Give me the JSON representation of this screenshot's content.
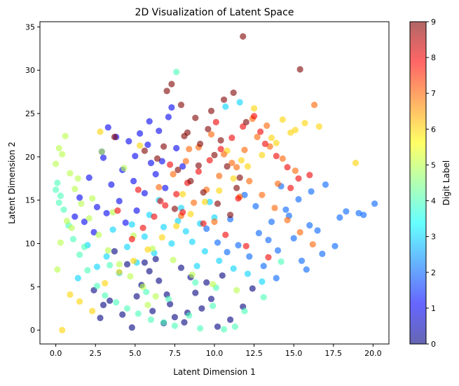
{
  "chart_data": {
    "type": "scatter",
    "title": "2D Visualization of Latent Space",
    "xlabel": "Latent Dimension 1",
    "ylabel": "Latent Dimension 2",
    "xlim": [
      -1.0,
      21.0
    ],
    "ylim": [
      -1.6,
      35.6
    ],
    "x_ticks": [
      0.0,
      2.5,
      5.0,
      7.5,
      10.0,
      12.5,
      15.0,
      17.5,
      20.0
    ],
    "x_tick_labels": [
      "0.0",
      "2.5",
      "5.0",
      "7.5",
      "10.0",
      "12.5",
      "15.0",
      "17.5",
      "20.0"
    ],
    "y_ticks": [
      0,
      5,
      10,
      15,
      20,
      25,
      30,
      35
    ],
    "y_tick_labels": [
      "0",
      "5",
      "10",
      "15",
      "20",
      "25",
      "30",
      "35"
    ],
    "grid": false,
    "marker_alpha": 0.6,
    "colormap": "jet",
    "colormap_stops": [
      "#00007f",
      "#0000ff",
      "#007fff",
      "#00ffff",
      "#7fff7f",
      "#ffff00",
      "#ff7f00",
      "#ff0000",
      "#7f0000"
    ],
    "colorbar": {
      "label": "Digit Label",
      "min": 0,
      "max": 9,
      "ticks": [
        0,
        1,
        2,
        3,
        4,
        5,
        6,
        7,
        8,
        9
      ],
      "tick_labels": [
        "0",
        "1",
        "2",
        "3",
        "4",
        "5",
        "6",
        "7",
        "8",
        "9"
      ]
    },
    "series": [
      {
        "label": 0,
        "x": [
          4.8,
          6.8,
          7.5,
          9.2,
          3.4,
          2.4,
          5.4,
          8.5,
          10.2,
          11.0,
          7.2,
          6.1,
          4.2,
          8.8,
          5.9,
          9.8,
          3.0,
          6.5,
          7.9,
          10.5,
          4.5,
          8.1,
          2.8,
          5.1,
          9.5,
          6.3,
          11.8,
          7.0,
          3.7,
          12.4,
          8.3,
          5.6
        ],
        "y": [
          0.3,
          0.8,
          1.5,
          2.5,
          3.4,
          4.6,
          5.2,
          6.1,
          0.4,
          1.2,
          3.0,
          2.2,
          1.8,
          4.3,
          6.8,
          3.6,
          2.9,
          5.7,
          7.2,
          6.3,
          7.6,
          0.9,
          1.4,
          3.9,
          5.5,
          8.2,
          2.7,
          4.1,
          9.1,
          4.8,
          2.0,
          7.8
        ]
      },
      {
        "label": 1,
        "x": [
          1.8,
          2.6,
          3.5,
          4.2,
          5.0,
          5.8,
          6.5,
          7.1,
          1.5,
          2.1,
          3.0,
          4.6,
          5.3,
          6.0,
          6.9,
          7.6,
          2.4,
          3.2,
          4.0,
          4.9,
          5.6,
          6.3,
          7.3,
          1.2,
          3.8,
          5.1,
          6.7,
          2.9,
          4.4,
          8.0,
          3.3,
          5.9
        ],
        "y": [
          12.5,
          14.2,
          16.8,
          18.5,
          20.1,
          21.4,
          23.0,
          24.6,
          15.3,
          17.6,
          19.9,
          21.8,
          22.7,
          19.3,
          16.4,
          21.0,
          11.3,
          13.5,
          14.9,
          17.2,
          15.8,
          18.0,
          25.7,
          13.1,
          22.3,
          13.8,
          19.5,
          20.6,
          12.4,
          18.9,
          23.4,
          24.1
        ]
      },
      {
        "label": 2,
        "x": [
          11.5,
          12.8,
          13.6,
          14.5,
          15.3,
          16.1,
          17.0,
          17.9,
          19.1,
          20.1,
          12.2,
          13.1,
          14.0,
          15.0,
          16.5,
          11.0,
          10.2,
          9.5,
          13.9,
          15.8,
          16.8,
          17.6,
          12.6,
          14.7,
          18.3,
          19.4,
          10.8,
          13.4,
          16.0,
          11.9,
          15.5,
          14.2
        ],
        "y": [
          9.8,
          11.2,
          12.5,
          13.9,
          15.1,
          16.0,
          16.8,
          13.0,
          13.5,
          14.6,
          8.5,
          7.4,
          9.2,
          10.6,
          11.5,
          12.8,
          10.1,
          11.7,
          6.0,
          7.0,
          8.8,
          9.7,
          14.3,
          13.2,
          13.7,
          13.3,
          9.0,
          10.4,
          12.1,
          15.6,
          8.0,
          16.6
        ]
      },
      {
        "label": 3,
        "x": [
          3.2,
          4.5,
          5.6,
          6.8,
          7.7,
          8.6,
          9.4,
          2.6,
          10.3,
          11.2,
          12.1,
          4.0,
          5.1,
          6.2,
          7.3,
          8.2,
          9.1,
          10.0,
          2.0,
          3.6,
          5.9,
          7.9,
          9.7,
          11.6,
          4.8,
          6.5,
          8.9,
          13.0,
          1.4,
          10.7
        ],
        "y": [
          8.5,
          9.6,
          10.8,
          11.9,
          12.6,
          10.2,
          9.1,
          7.3,
          8.0,
          7.1,
          6.5,
          6.6,
          7.8,
          8.9,
          10.0,
          11.4,
          12.3,
          13.0,
          9.8,
          11.6,
          13.3,
          14.1,
          14.8,
          26.3,
          12.2,
          15.0,
          7.4,
          5.6,
          6.0,
          25.8
        ]
      },
      {
        "label": 4,
        "x": [
          0.1,
          0.3,
          0.5,
          0.8,
          1.1,
          1.5,
          2.0,
          2.6,
          3.1,
          3.8,
          4.5,
          5.2,
          6.0,
          6.8,
          7.5,
          8.4,
          9.1,
          9.9,
          10.6,
          11.3,
          0.0,
          0.2,
          1.8,
          3.4,
          5.7,
          7.1,
          8.8,
          10.1,
          11.9,
          13.1,
          14.2,
          7.6
        ],
        "y": [
          17.0,
          15.5,
          13.9,
          12.1,
          10.5,
          8.7,
          6.9,
          5.1,
          4.0,
          3.2,
          2.5,
          1.9,
          1.2,
          0.9,
          0.5,
          1.7,
          0.2,
          2.8,
          0.1,
          0.4,
          16.2,
          14.7,
          9.6,
          7.5,
          4.4,
          3.6,
          5.5,
          4.9,
          2.2,
          3.8,
          7.9,
          29.8
        ]
      },
      {
        "label": 5,
        "x": [
          0.0,
          0.2,
          0.4,
          0.6,
          0.9,
          1.2,
          1.6,
          2.1,
          2.7,
          3.3,
          4.0,
          4.7,
          5.5,
          6.3,
          0.1,
          0.7,
          1.4,
          2.3,
          3.6,
          4.9,
          6.1,
          7.4,
          8.6,
          9.9,
          11.4,
          0.3,
          1.0,
          2.9,
          4.3,
          5.8
        ],
        "y": [
          19.2,
          21.0,
          20.3,
          22.4,
          18.1,
          16.3,
          14.6,
          12.9,
          11.0,
          9.2,
          7.6,
          6.2,
          5.0,
          3.9,
          7.0,
          12.6,
          17.5,
          15.2,
          13.6,
          10.9,
          9.4,
          8.1,
          6.4,
          5.3,
          4.6,
          10.1,
          11.8,
          20.6,
          18.7,
          2.9
        ]
      },
      {
        "label": 6,
        "x": [
          0.4,
          0.9,
          1.5,
          2.3,
          3.1,
          4.0,
          4.9,
          5.8,
          6.7,
          7.6,
          8.5,
          9.4,
          10.3,
          11.2,
          12.1,
          13.0,
          13.9,
          14.8,
          15.7,
          16.6,
          18.9,
          10.8,
          12.5,
          14.3,
          2.8,
          5.3,
          8.0,
          11.7,
          13.6,
          15.1
        ],
        "y": [
          0.0,
          4.1,
          3.3,
          2.2,
          5.4,
          6.7,
          8.0,
          9.3,
          10.7,
          12.0,
          13.4,
          14.8,
          16.1,
          17.5,
          18.9,
          20.2,
          21.6,
          22.8,
          23.9,
          23.5,
          19.3,
          20.7,
          25.6,
          24.3,
          22.9,
          21.3,
          15.7,
          19.6,
          22.2,
          23.1
        ]
      },
      {
        "label": 7,
        "x": [
          6.5,
          7.4,
          8.2,
          9.0,
          9.8,
          10.6,
          11.4,
          12.2,
          13.0,
          13.8,
          14.6,
          15.4,
          16.2,
          7.9,
          8.7,
          9.5,
          10.3,
          11.1,
          11.9,
          12.7,
          13.5,
          14.3,
          15.1,
          10.0,
          12.4,
          14.0,
          16.3,
          8.4,
          11.6,
          13.3
        ],
        "y": [
          16.5,
          18.0,
          19.5,
          21.1,
          22.6,
          20.3,
          18.8,
          17.2,
          15.6,
          14.1,
          12.7,
          11.3,
          9.9,
          13.2,
          14.7,
          16.2,
          17.8,
          19.3,
          20.8,
          22.3,
          21.2,
          19.8,
          18.4,
          12.5,
          24.4,
          16.9,
          26.0,
          20.9,
          15.4,
          23.6
        ]
      },
      {
        "label": 8,
        "x": [
          4.8,
          5.5,
          6.2,
          6.9,
          7.6,
          8.3,
          9.0,
          9.7,
          10.4,
          11.1,
          11.8,
          12.5,
          13.2,
          13.9,
          14.6,
          15.3,
          5.2,
          6.6,
          8.0,
          9.3,
          10.7,
          12.0,
          13.4,
          14.8,
          16.0,
          3.9,
          7.2,
          10.1,
          11.5,
          12.9
        ],
        "y": [
          10.5,
          11.8,
          13.1,
          14.4,
          15.7,
          17.0,
          18.3,
          19.6,
          20.9,
          22.2,
          23.5,
          24.7,
          21.5,
          20.1,
          18.8,
          17.5,
          16.2,
          14.9,
          13.6,
          12.3,
          11.0,
          9.7,
          8.4,
          16.4,
          17.9,
          13.8,
          19.1,
          24.0,
          15.2,
          22.9
        ]
      },
      {
        "label": 9,
        "x": [
          11.8,
          15.4,
          7.3,
          7.0,
          7.9,
          8.8,
          9.6,
          10.4,
          11.2,
          12.0,
          8.3,
          9.1,
          10.0,
          10.8,
          11.6,
          6.4,
          7.7,
          8.5,
          9.3,
          10.2,
          11.0,
          6.8,
          8.1,
          9.8,
          10.6,
          11.4,
          7.5,
          9.0,
          3.7,
          5.6
        ],
        "y": [
          33.9,
          30.1,
          28.4,
          27.6,
          26.0,
          24.5,
          23.2,
          21.9,
          27.4,
          24.0,
          22.8,
          21.5,
          20.2,
          18.9,
          17.6,
          19.8,
          18.5,
          17.2,
          15.9,
          14.6,
          13.3,
          21.2,
          22.4,
          25.3,
          26.6,
          16.4,
          14.0,
          19.0,
          22.3,
          20.7
        ]
      }
    ]
  }
}
